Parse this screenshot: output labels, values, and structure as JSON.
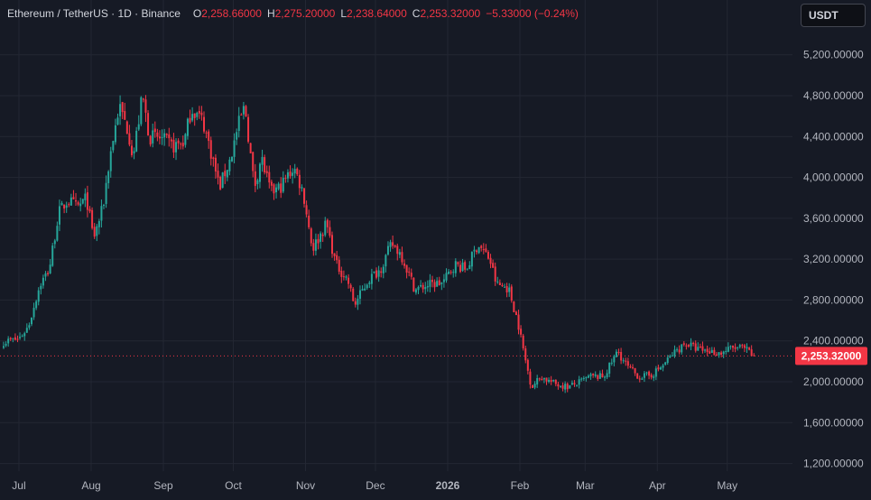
{
  "header": {
    "symbol": "Ethereum / TetherUS · 1D · Binance",
    "open_label": "O",
    "open": "2,258.66000",
    "high_label": "H",
    "high": "2,275.20000",
    "low_label": "L",
    "low": "2,238.64000",
    "close_label": "C",
    "close": "2,253.32000",
    "change": "−5.33000 (−0.24%)"
  },
  "currency_button": "USDT",
  "price_tag": "2,253.32000",
  "colors": {
    "background": "#161a25",
    "up": "#26a69a",
    "down": "#f23645",
    "grid": "#232733",
    "axis_text": "#b2b5be",
    "last_price_line": "#f23645"
  },
  "chart_data": {
    "type": "candlestick",
    "y_ticks": [
      "1,200.00000",
      "1,600.00000",
      "2,000.00000",
      "2,400.00000",
      "2,800.00000",
      "3,200.00000",
      "3,600.00000",
      "4,000.00000",
      "4,400.00000",
      "4,800.00000",
      "5,200.00000"
    ],
    "y_tick_values": [
      1200,
      1600,
      2000,
      2400,
      2800,
      3200,
      3600,
      4000,
      4400,
      4800,
      5200
    ],
    "x_ticks": [
      "Jul",
      "Aug",
      "Sep",
      "Oct",
      "Nov",
      "Dec",
      "2026",
      "Feb",
      "Mar",
      "Apr",
      "May"
    ],
    "ylim": [
      1100,
      5500
    ],
    "last_price": 2253.32,
    "grid": true,
    "price_path": [
      {
        "date": "2025-06-22",
        "close": 2380
      },
      {
        "date": "2025-07-01",
        "close": 2420
      },
      {
        "date": "2025-07-05",
        "close": 2540
      },
      {
        "date": "2025-07-10",
        "close": 2950
      },
      {
        "date": "2025-07-14",
        "close": 3100
      },
      {
        "date": "2025-07-18",
        "close": 3650
      },
      {
        "date": "2025-07-22",
        "close": 3780
      },
      {
        "date": "2025-07-26",
        "close": 3700
      },
      {
        "date": "2025-07-30",
        "close": 3800
      },
      {
        "date": "2025-08-02",
        "close": 3400
      },
      {
        "date": "2025-08-06",
        "close": 3700
      },
      {
        "date": "2025-08-09",
        "close": 4200
      },
      {
        "date": "2025-08-13",
        "close": 4700
      },
      {
        "date": "2025-08-17",
        "close": 4450
      },
      {
        "date": "2025-08-19",
        "close": 4200
      },
      {
        "date": "2025-08-23",
        "close": 4800
      },
      {
        "date": "2025-08-26",
        "close": 4400
      },
      {
        "date": "2025-08-31",
        "close": 4380
      },
      {
        "date": "2025-09-05",
        "close": 4300
      },
      {
        "date": "2025-09-10",
        "close": 4350
      },
      {
        "date": "2025-09-13",
        "close": 4680
      },
      {
        "date": "2025-09-18",
        "close": 4550
      },
      {
        "date": "2025-09-22",
        "close": 4200
      },
      {
        "date": "2025-09-25",
        "close": 3900
      },
      {
        "date": "2025-09-30",
        "close": 4200
      },
      {
        "date": "2025-10-03",
        "close": 4500
      },
      {
        "date": "2025-10-06",
        "close": 4700
      },
      {
        "date": "2025-10-10",
        "close": 3900
      },
      {
        "date": "2025-10-13",
        "close": 4200
      },
      {
        "date": "2025-10-17",
        "close": 3850
      },
      {
        "date": "2025-10-21",
        "close": 3900
      },
      {
        "date": "2025-10-27",
        "close": 4100
      },
      {
        "date": "2025-10-31",
        "close": 3850
      },
      {
        "date": "2025-11-04",
        "close": 3300
      },
      {
        "date": "2025-11-10",
        "close": 3550
      },
      {
        "date": "2025-11-14",
        "close": 3150
      },
      {
        "date": "2025-11-19",
        "close": 3000
      },
      {
        "date": "2025-11-22",
        "close": 2750
      },
      {
        "date": "2025-11-28",
        "close": 3000
      },
      {
        "date": "2025-12-03",
        "close": 3100
      },
      {
        "date": "2025-12-08",
        "close": 3350
      },
      {
        "date": "2025-12-12",
        "close": 3250
      },
      {
        "date": "2025-12-18",
        "close": 2900
      },
      {
        "date": "2025-12-24",
        "close": 2950
      },
      {
        "date": "2025-12-30",
        "close": 2970
      },
      {
        "date": "2026-01-04",
        "close": 3150
      },
      {
        "date": "2026-01-09",
        "close": 3100
      },
      {
        "date": "2026-01-14",
        "close": 3350
      },
      {
        "date": "2026-01-19",
        "close": 3200
      },
      {
        "date": "2026-01-22",
        "close": 2950
      },
      {
        "date": "2026-01-27",
        "close": 2920
      },
      {
        "date": "2026-01-31",
        "close": 2600
      },
      {
        "date": "2026-02-03",
        "close": 2250
      },
      {
        "date": "2026-02-06",
        "close": 1950
      },
      {
        "date": "2026-02-10",
        "close": 2050
      },
      {
        "date": "2026-02-16",
        "close": 1980
      },
      {
        "date": "2026-02-22",
        "close": 1950
      },
      {
        "date": "2026-02-27",
        "close": 2000
      },
      {
        "date": "2026-03-03",
        "close": 2050
      },
      {
        "date": "2026-03-09",
        "close": 2050
      },
      {
        "date": "2026-03-15",
        "close": 2300
      },
      {
        "date": "2026-03-19",
        "close": 2150
      },
      {
        "date": "2026-03-24",
        "close": 2050
      },
      {
        "date": "2026-03-29",
        "close": 2060
      },
      {
        "date": "2026-04-03",
        "close": 2150
      },
      {
        "date": "2026-04-08",
        "close": 2280
      },
      {
        "date": "2026-04-13",
        "close": 2380
      },
      {
        "date": "2026-04-18",
        "close": 2320
      },
      {
        "date": "2026-04-23",
        "close": 2300
      },
      {
        "date": "2026-04-28",
        "close": 2280
      },
      {
        "date": "2026-05-03",
        "close": 2330
      },
      {
        "date": "2026-05-08",
        "close": 2330
      },
      {
        "date": "2026-05-12",
        "close": 2253
      }
    ]
  }
}
